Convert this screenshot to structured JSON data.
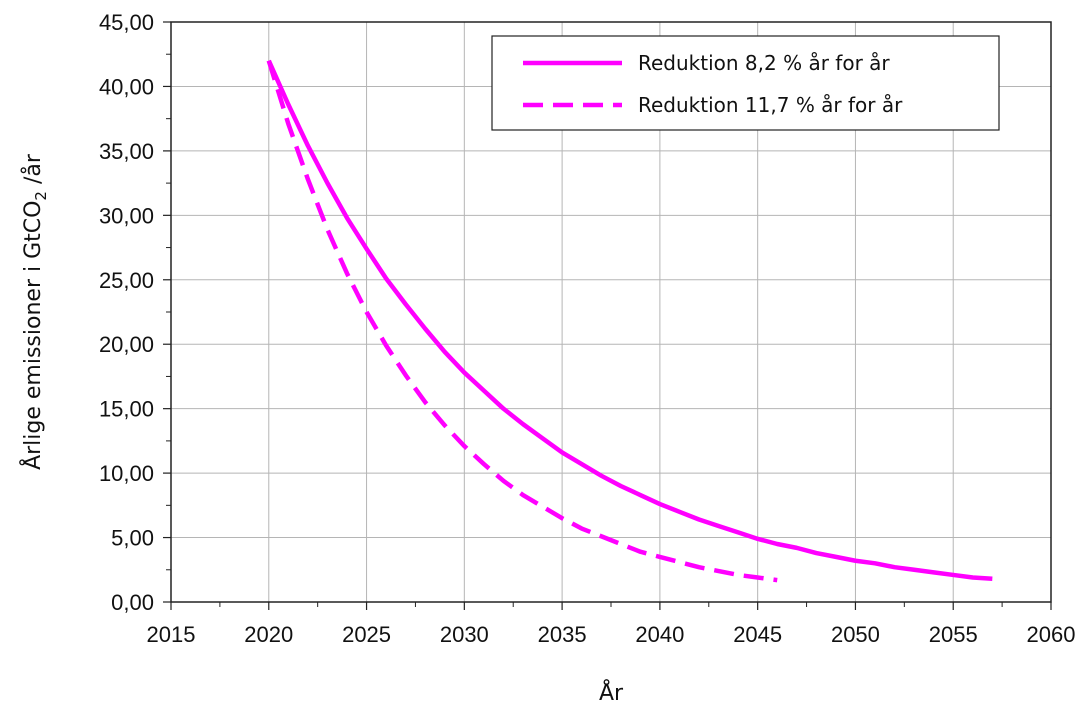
{
  "chart_data": {
    "type": "line",
    "title": "",
    "xlabel": "År",
    "ylabel": {
      "prefix": "Årlige emissioner i GtCO",
      "subscript": "2",
      "suffix": " /år"
    },
    "xlim": [
      2015,
      2060
    ],
    "ylim": [
      0,
      45
    ],
    "x_ticks": [
      "2015",
      "2020",
      "2025",
      "2030",
      "2035",
      "2040",
      "2045",
      "2050",
      "2055",
      "2060"
    ],
    "y_ticks": [
      "0,00",
      "5,00",
      "10,00",
      "15,00",
      "20,00",
      "25,00",
      "30,00",
      "35,00",
      "40,00",
      "45,00"
    ],
    "grid": true,
    "legend_position": "top-right",
    "series": [
      {
        "name": "Reduktion 8,2 % år for år",
        "style": "solid",
        "color": "#ff00ff",
        "x": [
          2020,
          2021,
          2022,
          2023,
          2024,
          2025,
          2026,
          2027,
          2028,
          2029,
          2030,
          2031,
          2032,
          2033,
          2034,
          2035,
          2036,
          2037,
          2038,
          2039,
          2040,
          2041,
          2042,
          2043,
          2044,
          2045,
          2046,
          2047,
          2048,
          2049,
          2050,
          2051,
          2052,
          2053,
          2054,
          2055,
          2056,
          2057
        ],
        "values": [
          42.0,
          38.6,
          35.4,
          32.5,
          29.8,
          27.4,
          25.1,
          23.1,
          21.2,
          19.4,
          17.8,
          16.4,
          15.0,
          13.8,
          12.7,
          11.6,
          10.7,
          9.8,
          9.0,
          8.3,
          7.6,
          7.0,
          6.4,
          5.9,
          5.4,
          4.9,
          4.5,
          4.2,
          3.8,
          3.5,
          3.2,
          3.0,
          2.7,
          2.5,
          2.3,
          2.1,
          1.9,
          1.8
        ]
      },
      {
        "name": "Reduktion 11,7 % år for år",
        "style": "dashed",
        "color": "#ff00ff",
        "x": [
          2020,
          2021,
          2022,
          2023,
          2024,
          2025,
          2026,
          2027,
          2028,
          2029,
          2030,
          2031,
          2032,
          2033,
          2034,
          2035,
          2036,
          2037,
          2038,
          2039,
          2040,
          2041,
          2042,
          2043,
          2044,
          2045,
          2046
        ],
        "values": [
          42.0,
          37.1,
          32.8,
          28.9,
          25.5,
          22.5,
          19.9,
          17.6,
          15.5,
          13.7,
          12.1,
          10.7,
          9.4,
          8.3,
          7.4,
          6.5,
          5.7,
          5.1,
          4.5,
          3.9,
          3.5,
          3.1,
          2.7,
          2.4,
          2.1,
          1.9,
          1.7
        ]
      }
    ]
  }
}
